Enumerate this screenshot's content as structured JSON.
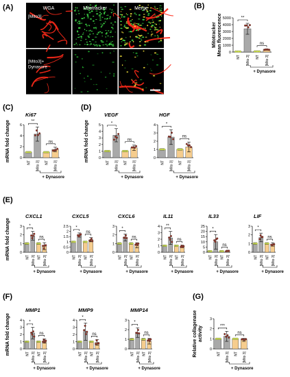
{
  "figure": {
    "microscopy": {
      "letter": "(A)",
      "columns": [
        "WGA",
        "Mitotracker",
        "Merge"
      ],
      "rows": [
        "[Mito3]",
        "[Mito3]+\nDynasore"
      ]
    },
    "labels": {
      "nt": "NT",
      "mito3": "[Mito 3]",
      "dynasore": "+ Dynasore",
      "mrna": "mRNA fold change",
      "mitotracker": "Mitotracker\nMean fluorescence",
      "collagenase": "Relative collagenase\nactivity"
    },
    "colors": {
      "bar_gray": "#a9a9a9",
      "bar_orange": "#f6cd8e",
      "nt_dot": "#d4e84a",
      "sample_dot": "#8a2b1e"
    }
  },
  "chart_data": [
    {
      "id": "B",
      "letter": "(B)",
      "gene": "",
      "type": "bar",
      "ylim": [
        0,
        5000
      ],
      "yticks": [
        0,
        1000,
        2000,
        3000,
        4000,
        5000
      ],
      "categories": [
        "NT",
        "[Mito 3]",
        "NT",
        "[Mito 3]"
      ],
      "values": [
        80,
        3400,
        100,
        350
      ],
      "errors": [
        30,
        800,
        30,
        80
      ],
      "significance": [
        {
          "text": "**",
          "pair": [
            0,
            1
          ]
        },
        {
          "text": "ns",
          "pair": [
            2,
            3
          ]
        }
      ],
      "ylabel_key": "mitotracker"
    },
    {
      "id": "Ki67",
      "letter": "(C)",
      "gene": "Ki67",
      "type": "bar",
      "ylim": [
        0,
        6
      ],
      "yticks": [
        0,
        2,
        4,
        6
      ],
      "categories": [
        "NT",
        "[Mito 3]",
        "NT",
        "[Mito 3]"
      ],
      "values": [
        1,
        4.3,
        1,
        1.5
      ],
      "errors": [
        0.1,
        1.3,
        0.1,
        0.4
      ],
      "significance": [
        {
          "text": "**",
          "pair": [
            0,
            1
          ]
        },
        {
          "text": "ns",
          "pair": [
            2,
            3
          ]
        }
      ],
      "ylabel_key": "mrna"
    },
    {
      "id": "VEGF",
      "letter": "(D)",
      "gene": "VEGF",
      "type": "bar",
      "ylim": [
        0,
        5
      ],
      "yticks": [
        0,
        1,
        2,
        3,
        4,
        5
      ],
      "categories": [
        "NT",
        "[Mito 3]",
        "NT",
        "[Mito 3]"
      ],
      "values": [
        1,
        3.4,
        1,
        1.5
      ],
      "errors": [
        0.1,
        1.0,
        0.1,
        0.4
      ],
      "significance": [
        {
          "text": "*",
          "pair": [
            0,
            1
          ]
        },
        {
          "text": "ns",
          "pair": [
            2,
            3
          ]
        }
      ],
      "ylabel_key": "mrna"
    },
    {
      "id": "HGF",
      "letter": "",
      "gene": "HGF",
      "type": "bar",
      "ylim": [
        0,
        4
      ],
      "yticks": [
        0,
        1,
        2,
        3,
        4
      ],
      "categories": [
        "NT",
        "[Mito 3]",
        "NT",
        "[Mito 3]"
      ],
      "values": [
        1,
        2.5,
        1,
        1.3
      ],
      "errors": [
        0.1,
        0.9,
        0.1,
        0.6
      ],
      "significance": [
        {
          "text": "*",
          "pair": [
            0,
            1
          ]
        },
        {
          "text": "ns",
          "pair": [
            2,
            3
          ]
        }
      ],
      "ylabel_key": ""
    },
    {
      "id": "CXCL1",
      "letter": "(E)",
      "gene": "CXCL1",
      "type": "bar",
      "ylim": [
        0,
        3
      ],
      "yticks": [
        0,
        1,
        2,
        3
      ],
      "categories": [
        "NT",
        "[Mito 3]",
        "NT",
        "[Mito 3]"
      ],
      "values": [
        1,
        1.9,
        1,
        0.7
      ],
      "errors": [
        0.1,
        0.5,
        0.1,
        0.4
      ],
      "significance": [
        {
          "text": "*",
          "pair": [
            0,
            1
          ]
        },
        {
          "text": "ns",
          "pair": [
            2,
            3
          ]
        }
      ],
      "ylabel_key": "mrna"
    },
    {
      "id": "CXCL5",
      "letter": "",
      "gene": "CXCL5",
      "type": "bar",
      "ylim": [
        0,
        2.5
      ],
      "yticks": [
        0,
        0.5,
        1,
        1.5,
        2,
        2.5
      ],
      "categories": [
        "NT",
        "[Mito 3]",
        "NT",
        "[Mito 3]"
      ],
      "values": [
        1,
        1.65,
        1,
        1.2
      ],
      "errors": [
        0.05,
        0.2,
        0.05,
        0.2
      ],
      "significance": [
        {
          "text": "*",
          "pair": [
            0,
            1
          ]
        },
        {
          "text": "ns",
          "pair": [
            2,
            3
          ]
        }
      ],
      "ylabel_key": ""
    },
    {
      "id": "CXCL6",
      "letter": "",
      "gene": "CXCL6",
      "type": "bar",
      "ylim": [
        0,
        3
      ],
      "yticks": [
        0,
        1,
        2,
        3
      ],
      "categories": [
        "NT",
        "[Mito 3]",
        "NT",
        "[Mito 3]"
      ],
      "values": [
        1,
        1.7,
        1,
        0.8
      ],
      "errors": [
        0.1,
        0.4,
        0.1,
        0.3
      ],
      "significance": [
        {
          "text": "*",
          "pair": [
            0,
            1
          ]
        },
        {
          "text": "ns",
          "pair": [
            2,
            3
          ]
        }
      ],
      "ylabel_key": ""
    },
    {
      "id": "IL11",
      "letter": "",
      "gene": "IL11",
      "type": "bar",
      "ylim": [
        0,
        4
      ],
      "yticks": [
        0,
        1,
        2,
        3,
        4
      ],
      "categories": [
        "NT",
        "[Mito 3]",
        "NT",
        "[Mito 3]"
      ],
      "values": [
        1,
        2.2,
        1,
        0.9
      ],
      "errors": [
        0.1,
        1.0,
        0.1,
        0.2
      ],
      "significance": [
        {
          "text": "**",
          "pair": [
            0,
            1
          ]
        },
        {
          "text": "ns",
          "pair": [
            2,
            3
          ]
        }
      ],
      "ylabel_key": ""
    },
    {
      "id": "IL33",
      "letter": "",
      "gene": "IL33",
      "type": "bar",
      "ylim": [
        0,
        25
      ],
      "yticks": [
        0,
        5,
        10,
        15,
        20,
        25
      ],
      "categories": [
        "NT",
        "[Mito 3]",
        "NT",
        "[Mito 3]"
      ],
      "values": [
        1,
        10,
        1,
        1.2
      ],
      "errors": [
        0.2,
        7,
        0.2,
        0.4
      ],
      "significance": [
        {
          "text": "*",
          "pair": [
            0,
            1
          ]
        },
        {
          "text": "ns",
          "pair": [
            2,
            3
          ]
        }
      ],
      "ylabel_key": ""
    },
    {
      "id": "LIF",
      "letter": "",
      "gene": "LIF",
      "type": "bar",
      "ylim": [
        0,
        3
      ],
      "yticks": [
        0,
        1,
        2,
        3
      ],
      "categories": [
        "NT",
        "[Mito 3]",
        "NT",
        "[Mito 3]"
      ],
      "values": [
        1,
        1.7,
        1,
        0.9
      ],
      "errors": [
        0.1,
        0.5,
        0.1,
        0.2
      ],
      "significance": [
        {
          "text": "*",
          "pair": [
            0,
            1
          ]
        },
        {
          "text": "ns",
          "pair": [
            2,
            3
          ]
        }
      ],
      "ylabel_key": ""
    },
    {
      "id": "MMP1",
      "letter": "(F)",
      "gene": "MMP1",
      "type": "bar",
      "ylim": [
        0,
        4
      ],
      "yticks": [
        0,
        1,
        2,
        3,
        4
      ],
      "categories": [
        "NT",
        "[Mito 3]",
        "NT",
        "[Mito 3]"
      ],
      "values": [
        1,
        2.2,
        1,
        1.1
      ],
      "errors": [
        0.1,
        0.8,
        0.1,
        0.3
      ],
      "significance": [
        {
          "text": "*",
          "pair": [
            0,
            1
          ]
        },
        {
          "text": "ns",
          "pair": [
            2,
            3
          ]
        }
      ],
      "ylabel_key": "mrna"
    },
    {
      "id": "MMP9",
      "letter": "",
      "gene": "MMP9",
      "type": "bar",
      "ylim": [
        0,
        4
      ],
      "yticks": [
        0,
        1,
        2,
        3,
        4
      ],
      "categories": [
        "NT",
        "[Mito 3]",
        "NT",
        "[Mito 3]"
      ],
      "values": [
        1,
        2.4,
        1,
        0.9
      ],
      "errors": [
        0.1,
        1.2,
        0.1,
        0.4
      ],
      "significance": [
        {
          "text": "*",
          "pair": [
            0,
            1
          ]
        },
        {
          "text": "ns",
          "pair": [
            2,
            3
          ]
        }
      ],
      "ylabel_key": ""
    },
    {
      "id": "MMP14",
      "letter": "",
      "gene": "MMP14",
      "type": "bar",
      "ylim": [
        0,
        3
      ],
      "yticks": [
        0,
        1,
        2,
        3
      ],
      "categories": [
        "NT",
        "[Mito 3]",
        "NT",
        "[Mito 3]"
      ],
      "values": [
        1,
        1.7,
        1,
        0.8
      ],
      "errors": [
        0.1,
        0.5,
        0.1,
        0.3
      ],
      "significance": [
        {
          "text": "*",
          "pair": [
            0,
            1
          ]
        },
        {
          "text": "ns",
          "pair": [
            2,
            3
          ]
        }
      ],
      "ylabel_key": ""
    },
    {
      "id": "G",
      "letter": "(G)",
      "gene": "",
      "type": "bar",
      "ylim": [
        0,
        3
      ],
      "yticks": [
        0,
        1,
        2,
        3
      ],
      "categories": [
        "NT",
        "[Mito 3]",
        "NT",
        "[Mito 3]"
      ],
      "values": [
        1,
        1.25,
        1,
        0.9
      ],
      "errors": [
        0.05,
        0.5,
        0.05,
        0.15
      ],
      "significance": [
        {
          "text": "***",
          "pair": [
            0,
            1
          ]
        },
        {
          "text": "ns",
          "pair": [
            2,
            3
          ]
        }
      ],
      "ylabel_key": "collagenase"
    }
  ]
}
